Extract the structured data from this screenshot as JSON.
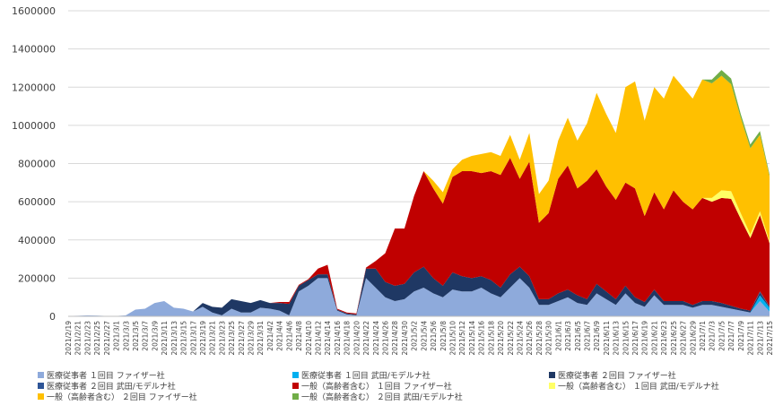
{
  "chart_data": {
    "type": "area",
    "stacked": true,
    "ylim": [
      0,
      1600000
    ],
    "yticks": [
      0,
      200000,
      400000,
      600000,
      800000,
      1000000,
      1200000,
      1400000,
      1600000
    ],
    "ytick_labels": [
      "0",
      "200000",
      "400000",
      "600000",
      "800000",
      "1000000",
      "1200000",
      "1400000",
      "1600000"
    ],
    "grid": true,
    "legend_position": "bottom",
    "x_tick_labels": [
      "2021/2/19",
      "2021/2/21",
      "2021/2/23",
      "2021/2/25",
      "2021/2/27",
      "2021/3/1",
      "2021/3/3",
      "2021/3/5",
      "2021/3/7",
      "2021/3/9",
      "2021/3/11",
      "2021/3/13",
      "2021/3/15",
      "2021/3/17",
      "2021/3/19",
      "2021/3/21",
      "2021/3/23",
      "2021/3/25",
      "2021/3/27",
      "2021/3/29",
      "2021/3/31",
      "2021/4/2",
      "2021/4/4",
      "2021/4/6",
      "2021/4/8",
      "2021/4/10",
      "2021/4/12",
      "2021/4/14",
      "2021/4/16",
      "2021/4/18",
      "2021/4/20",
      "2021/4/22",
      "2021/4/24",
      "2021/4/26",
      "2021/4/28",
      "2021/4/30",
      "2021/5/2",
      "2021/5/4",
      "2021/5/6",
      "2021/5/8",
      "2021/5/10",
      "2021/5/12",
      "2021/5/14",
      "2021/5/16",
      "2021/5/18",
      "2021/5/20",
      "2021/5/22",
      "2021/5/24",
      "2021/5/26",
      "2021/5/28",
      "2021/5/30",
      "2021/6/1",
      "2021/6/3",
      "2021/6/5",
      "2021/6/7",
      "2021/6/9",
      "2021/6/11",
      "2021/6/13",
      "2021/6/15",
      "2021/6/17",
      "2021/6/19",
      "2021/6/21",
      "2021/6/23",
      "2021/6/25",
      "2021/6/27",
      "2021/6/29",
      "2021/7/1",
      "2021/7/3",
      "2021/7/5",
      "2021/7/7",
      "2021/7/9",
      "2021/7/11",
      "2021/7/13",
      "2021/7/15"
    ],
    "x": [
      "2021/2/19",
      "2021/2/21",
      "2021/2/23",
      "2021/2/25",
      "2021/2/27",
      "2021/3/1",
      "2021/3/3",
      "2021/3/5",
      "2021/3/7",
      "2021/3/9",
      "2021/3/11",
      "2021/3/13",
      "2021/3/15",
      "2021/3/17",
      "2021/3/19",
      "2021/3/21",
      "2021/3/23",
      "2021/3/25",
      "2021/3/27",
      "2021/3/29",
      "2021/3/31",
      "2021/4/2",
      "2021/4/4",
      "2021/4/6",
      "2021/4/8",
      "2021/4/10",
      "2021/4/12",
      "2021/4/14",
      "2021/4/16",
      "2021/4/18",
      "2021/4/20",
      "2021/4/22",
      "2021/4/24",
      "2021/4/26",
      "2021/4/28",
      "2021/4/30",
      "2021/5/2",
      "2021/5/4",
      "2021/5/6",
      "2021/5/8",
      "2021/5/10",
      "2021/5/12",
      "2021/5/14",
      "2021/5/16",
      "2021/5/18",
      "2021/5/20",
      "2021/5/22",
      "2021/5/24",
      "2021/5/26",
      "2021/5/28",
      "2021/5/30",
      "2021/6/1",
      "2021/6/3",
      "2021/6/5",
      "2021/6/7",
      "2021/6/9",
      "2021/6/11",
      "2021/6/13",
      "2021/6/15",
      "2021/6/17",
      "2021/6/19",
      "2021/6/21",
      "2021/6/23",
      "2021/6/25",
      "2021/6/27",
      "2021/6/29",
      "2021/7/1",
      "2021/7/3",
      "2021/7/5",
      "2021/7/7",
      "2021/7/9",
      "2021/7/11",
      "2021/7/13",
      "2021/7/15"
    ],
    "series": [
      {
        "name": "医療従事者 １回目 ファイザー社",
        "color": "#8eaadb",
        "values": [
          2000,
          3000,
          5000,
          4000,
          2000,
          2000,
          5000,
          35000,
          40000,
          70000,
          80000,
          45000,
          40000,
          25000,
          50000,
          20000,
          5000,
          40000,
          20000,
          20000,
          45000,
          40000,
          30000,
          5000,
          130000,
          160000,
          200000,
          200000,
          30000,
          10000,
          5000,
          200000,
          150000,
          100000,
          80000,
          90000,
          130000,
          150000,
          120000,
          100000,
          140000,
          130000,
          130000,
          150000,
          120000,
          100000,
          150000,
          200000,
          150000,
          60000,
          60000,
          80000,
          100000,
          70000,
          60000,
          120000,
          90000,
          60000,
          120000,
          70000,
          50000,
          110000,
          60000,
          60000,
          60000,
          45000,
          60000,
          60000,
          50000,
          40000,
          30000,
          20000,
          80000,
          25000
        ]
      },
      {
        "name": "医療従事者 １回目 武田/モデルナ社",
        "color": "#00b0f0",
        "values": [
          0,
          0,
          0,
          0,
          0,
          0,
          0,
          0,
          0,
          0,
          0,
          0,
          0,
          0,
          0,
          0,
          0,
          0,
          0,
          0,
          0,
          0,
          0,
          0,
          0,
          0,
          0,
          0,
          0,
          0,
          0,
          0,
          0,
          0,
          0,
          0,
          0,
          0,
          0,
          0,
          0,
          0,
          0,
          0,
          0,
          0,
          0,
          0,
          0,
          0,
          0,
          0,
          0,
          0,
          0,
          0,
          0,
          0,
          0,
          0,
          0,
          0,
          0,
          0,
          0,
          0,
          0,
          0,
          0,
          0,
          0,
          0,
          30000,
          20000
        ]
      },
      {
        "name": "医療従事者 ２回目 ファイザー社",
        "color": "#1f3864",
        "values": [
          0,
          0,
          0,
          0,
          0,
          0,
          0,
          0,
          0,
          0,
          0,
          0,
          0,
          0,
          20000,
          30000,
          40000,
          50000,
          60000,
          50000,
          40000,
          30000,
          40000,
          60000,
          30000,
          30000,
          20000,
          20000,
          5000,
          5000,
          5000,
          50000,
          100000,
          80000,
          80000,
          80000,
          100000,
          110000,
          80000,
          60000,
          90000,
          80000,
          70000,
          60000,
          70000,
          50000,
          70000,
          60000,
          60000,
          30000,
          30000,
          40000,
          40000,
          40000,
          30000,
          50000,
          40000,
          30000,
          40000,
          30000,
          25000,
          30000,
          20000,
          20000,
          20000,
          15000,
          20000,
          20000,
          20000,
          15000,
          10000,
          10000,
          15000,
          5000
        ]
      },
      {
        "name": "医療従事者 ２回目 武田/モデルナ社",
        "color": "#2e5597",
        "values": [
          0,
          0,
          0,
          0,
          0,
          0,
          0,
          0,
          0,
          0,
          0,
          0,
          0,
          0,
          0,
          0,
          0,
          0,
          0,
          0,
          0,
          0,
          0,
          0,
          0,
          0,
          0,
          0,
          0,
          0,
          0,
          0,
          0,
          0,
          0,
          0,
          0,
          0,
          0,
          0,
          0,
          0,
          0,
          0,
          0,
          0,
          0,
          0,
          0,
          0,
          0,
          0,
          0,
          0,
          0,
          0,
          0,
          0,
          0,
          0,
          0,
          0,
          0,
          0,
          0,
          0,
          0,
          0,
          0,
          0,
          0,
          0,
          5000,
          3000
        ]
      },
      {
        "name": "一般（高齢者含む） １回目 ファイザー社",
        "color": "#c00000",
        "values": [
          0,
          0,
          0,
          0,
          0,
          0,
          0,
          0,
          0,
          0,
          0,
          0,
          0,
          0,
          0,
          0,
          0,
          0,
          0,
          0,
          0,
          0,
          5000,
          10000,
          5000,
          5000,
          30000,
          50000,
          5000,
          5000,
          5000,
          5000,
          40000,
          150000,
          300000,
          290000,
          400000,
          500000,
          470000,
          430000,
          500000,
          550000,
          560000,
          540000,
          570000,
          590000,
          610000,
          460000,
          600000,
          400000,
          450000,
          600000,
          650000,
          560000,
          620000,
          600000,
          550000,
          520000,
          540000,
          570000,
          450000,
          510000,
          480000,
          580000,
          520000,
          500000,
          540000,
          520000,
          550000,
          560000,
          470000,
          380000,
          400000,
          330000
        ]
      },
      {
        "name": "一般（高齢者含む） １回目 武田/モデルナ社",
        "color": "#ffff66",
        "values": [
          0,
          0,
          0,
          0,
          0,
          0,
          0,
          0,
          0,
          0,
          0,
          0,
          0,
          0,
          0,
          0,
          0,
          0,
          0,
          0,
          0,
          0,
          0,
          0,
          0,
          0,
          0,
          0,
          0,
          0,
          0,
          0,
          0,
          0,
          0,
          0,
          0,
          0,
          0,
          0,
          0,
          0,
          0,
          0,
          0,
          0,
          0,
          0,
          0,
          0,
          0,
          0,
          0,
          0,
          0,
          0,
          0,
          0,
          0,
          0,
          0,
          0,
          0,
          0,
          0,
          0,
          0,
          20000,
          40000,
          40000,
          30000,
          20000,
          20000,
          10000
        ]
      },
      {
        "name": "一般（高齢者含む） ２回目 ファイザー社",
        "color": "#ffc000",
        "values": [
          0,
          0,
          0,
          0,
          0,
          0,
          0,
          0,
          0,
          0,
          0,
          0,
          0,
          0,
          0,
          0,
          0,
          0,
          0,
          0,
          0,
          0,
          0,
          0,
          0,
          0,
          0,
          0,
          0,
          0,
          0,
          0,
          0,
          0,
          0,
          0,
          0,
          0,
          40000,
          60000,
          40000,
          60000,
          80000,
          100000,
          100000,
          100000,
          120000,
          100000,
          150000,
          150000,
          170000,
          200000,
          250000,
          250000,
          300000,
          400000,
          380000,
          350000,
          500000,
          560000,
          500000,
          550000,
          580000,
          600000,
          600000,
          580000,
          620000,
          600000,
          600000,
          560000,
          500000,
          450000,
          400000,
          340000
        ]
      },
      {
        "name": "一般（高齢者含む） ２回目 武田/モデルナ社",
        "color": "#70ad47",
        "values": [
          0,
          0,
          0,
          0,
          0,
          0,
          0,
          0,
          0,
          0,
          0,
          0,
          0,
          0,
          0,
          0,
          0,
          0,
          0,
          0,
          0,
          0,
          0,
          0,
          0,
          0,
          0,
          0,
          0,
          0,
          0,
          0,
          0,
          0,
          0,
          0,
          0,
          0,
          0,
          0,
          0,
          0,
          0,
          0,
          0,
          0,
          0,
          0,
          0,
          0,
          0,
          0,
          0,
          0,
          0,
          0,
          0,
          0,
          0,
          0,
          0,
          0,
          0,
          0,
          0,
          0,
          0,
          20000,
          30000,
          30000,
          20000,
          20000,
          20000,
          10000
        ]
      }
    ]
  }
}
